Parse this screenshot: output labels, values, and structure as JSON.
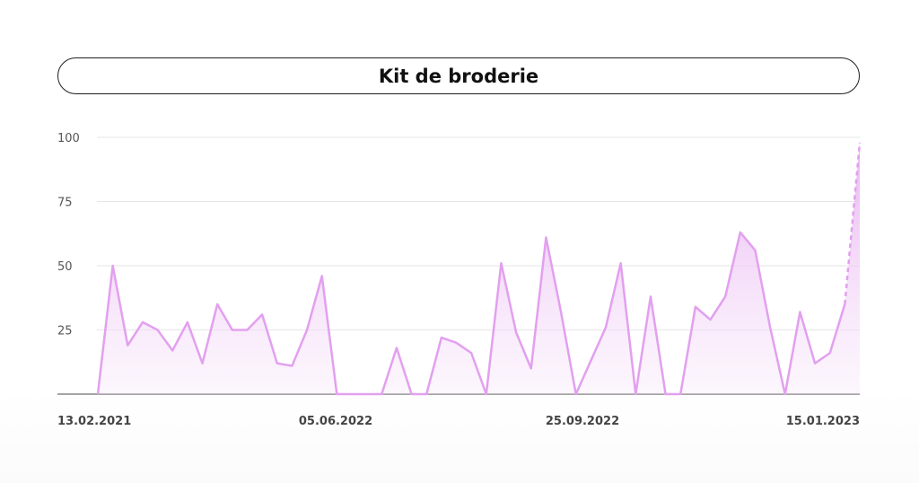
{
  "title": "Kit de broderie",
  "colors": {
    "line": "#e2a0ef",
    "fill": "#e9b4f1"
  },
  "chart_data": {
    "type": "area",
    "title": "Kit de broderie",
    "xlabel": "",
    "ylabel": "",
    "ylim": [
      0,
      100
    ],
    "yticks": [
      25,
      50,
      75,
      100
    ],
    "xtick_labels": [
      "13.02.2021",
      "05.06.2022",
      "25.09.2022",
      "15.01.2023"
    ],
    "grid": true,
    "series": [
      {
        "values": [
          0,
          50,
          19,
          28,
          25,
          17,
          28,
          12,
          35,
          25,
          25,
          31,
          12,
          11,
          25,
          46,
          0,
          0,
          0,
          0,
          18,
          0,
          0,
          22,
          20,
          16,
          0,
          51,
          24,
          10,
          61,
          32,
          0,
          13,
          26,
          51,
          0,
          38,
          0,
          0,
          34,
          29,
          38,
          63,
          56,
          26,
          0,
          32,
          12,
          16,
          35,
          98
        ],
        "forecast_from_index": 50
      }
    ]
  }
}
